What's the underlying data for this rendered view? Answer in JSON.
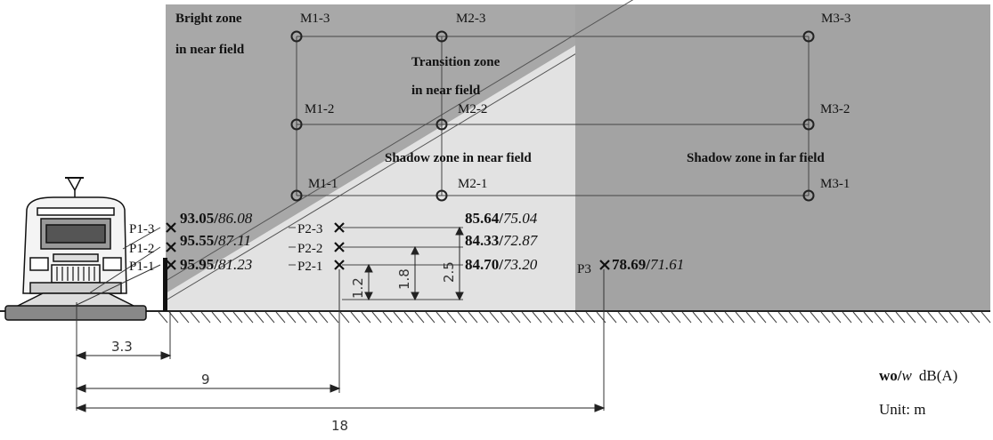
{
  "zones": {
    "bright_line1": "Bright zone",
    "bright_line2": "in near field",
    "transition_line1": "Transition zone",
    "transition_line2": "in near field",
    "shadow_near": "Shadow zone in near field",
    "shadow_far": "Shadow zone in far field"
  },
  "mic_points": {
    "m1_3": "M1-3",
    "m2_3": "M2-3",
    "m3_3": "M3-3",
    "m1_2": "M1-2",
    "m2_2": "M2-2",
    "m3_2": "M3-2",
    "m1_1": "M1-1",
    "m2_1": "M2-1",
    "m3_1": "M3-1"
  },
  "p_points": {
    "p1_3": "P1-3",
    "p1_2": "P1-2",
    "p1_1": "P1-1",
    "p2_3": "P2-3",
    "p2_2": "P2-2",
    "p2_1": "P2-1",
    "p3": "P3"
  },
  "values": {
    "p1_3": {
      "wo": "93.05",
      "w": "86.08"
    },
    "p1_2": {
      "wo": "95.55",
      "w": "87.11"
    },
    "p1_1": {
      "wo": "95.95",
      "w": "81.23"
    },
    "p2_3": {
      "wo": "85.64",
      "w": "75.04"
    },
    "p2_2": {
      "wo": "84.33",
      "w": "72.87"
    },
    "p2_1": {
      "wo": "84.70",
      "w": "73.20"
    },
    "p3": {
      "wo": "78.69",
      "w": "71.61"
    }
  },
  "heights": {
    "h1": "1.2",
    "h2": "1.8",
    "h3": "2.5"
  },
  "distances": {
    "d1": "3.3",
    "d2": "9",
    "d3": "18"
  },
  "legend": {
    "wo": "wo",
    "sep": "/",
    "w": "w",
    "unit_db": "dB(A)",
    "unit_m": "Unit: m"
  },
  "colors": {
    "bright_zone": "#a8a8a8",
    "transition_zone": "#e2e2e2",
    "shadow_far": "#a3a3a3"
  }
}
